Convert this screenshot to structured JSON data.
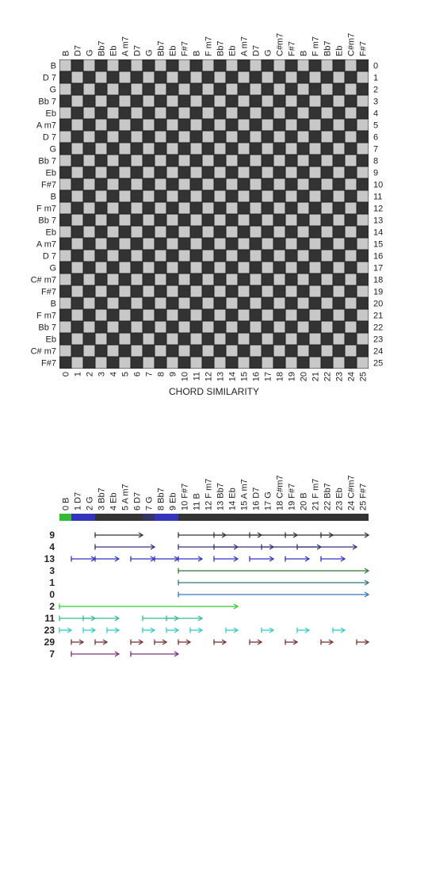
{
  "matrix": {
    "title": "CHORD SIMILARITY",
    "chords": [
      "B",
      "D7",
      "G",
      "Bb7",
      "Eb",
      "A m7",
      "D7",
      "G",
      "Bb7",
      "Eb",
      "F#7",
      "B",
      "F m7",
      "Bb7",
      "Eb",
      "A m7",
      "D7",
      "G",
      "C#m7",
      "F#7",
      "B",
      "F m7",
      "Bb7",
      "Eb",
      "C#m7",
      "F#7"
    ],
    "row_labels": [
      "B",
      "D 7",
      "G",
      "Bb 7",
      "Eb",
      "A m7",
      "D 7",
      "G",
      "Bb 7",
      "Eb",
      "F#7",
      "B",
      "F m7",
      "Bb 7",
      "Eb",
      "A m7",
      "D 7",
      "G",
      "C# m7",
      "F#7",
      "B",
      "F m7",
      "Bb 7",
      "Eb",
      "C# m7",
      "F#7"
    ],
    "indices": [
      "0",
      "1",
      "2",
      "3",
      "4",
      "5",
      "6",
      "7",
      "8",
      "9",
      "10",
      "11",
      "12",
      "13",
      "14",
      "15",
      "16",
      "17",
      "18",
      "19",
      "20",
      "21",
      "22",
      "23",
      "24",
      "25"
    ],
    "colors": {
      "similar": "#c8c8c8",
      "dissimilar": "#333333"
    }
  },
  "timeline": {
    "col_labels": [
      "0 B",
      "1 D7",
      "2 G",
      "3 Bb7",
      "4 Eb",
      "5 A m7",
      "6 D7",
      "7 G",
      "8 Bb7",
      "9 Eb",
      "10 F#7",
      "11 B",
      "12 F m7",
      "13 Bb7",
      "14 Eb",
      "15 A m7",
      "16 D7",
      "17 G",
      "18 C#m7",
      "19 F#7",
      "20 B",
      "21 F m7",
      "22 Bb7",
      "23 Eb",
      "24 C#m7",
      "25 F#7"
    ],
    "bar_segments": [
      {
        "start": 0,
        "end": 1,
        "color": "#33bb33"
      },
      {
        "start": 1,
        "end": 3,
        "color": "#3333bb"
      },
      {
        "start": 3,
        "end": 7,
        "color": "#333333"
      },
      {
        "start": 7,
        "end": 8,
        "color": "#333366"
      },
      {
        "start": 8,
        "end": 10,
        "color": "#3333bb"
      },
      {
        "start": 10,
        "end": 26,
        "color": "#333333"
      }
    ],
    "patterns": [
      {
        "label": "9",
        "color": "#333333",
        "length": 4,
        "starts": [
          3,
          10,
          13,
          16,
          19,
          22
        ]
      },
      {
        "label": "4",
        "color": "#333377",
        "length": 5,
        "starts": [
          3,
          10,
          13,
          17,
          20
        ]
      },
      {
        "label": "13",
        "color": "#3333cc",
        "length": 2,
        "starts": [
          1,
          3,
          6,
          8,
          10,
          13,
          16,
          19,
          22
        ]
      },
      {
        "label": "3",
        "color": "#337733",
        "length": 16,
        "starts": [
          10
        ]
      },
      {
        "label": "1",
        "color": "#337777",
        "length": 16,
        "starts": [
          10
        ]
      },
      {
        "label": "0",
        "color": "#3377bb",
        "length": 16,
        "starts": [
          10
        ]
      },
      {
        "label": "2",
        "color": "#33cc33",
        "length": 15,
        "starts": [
          0
        ]
      },
      {
        "label": "11",
        "color": "#33bb99",
        "length": 3,
        "starts": [
          0,
          2,
          7,
          9
        ]
      },
      {
        "label": "23",
        "color": "#33cccc",
        "length": 1,
        "starts": [
          0,
          2,
          4,
          7,
          9,
          11,
          14,
          17,
          20,
          23
        ]
      },
      {
        "label": "29",
        "color": "#773333",
        "length": 1,
        "starts": [
          1,
          3,
          6,
          8,
          10,
          13,
          16,
          19,
          22,
          25
        ]
      },
      {
        "label": "7",
        "color": "#773377",
        "length": 4,
        "starts": [
          1,
          6
        ]
      }
    ]
  }
}
